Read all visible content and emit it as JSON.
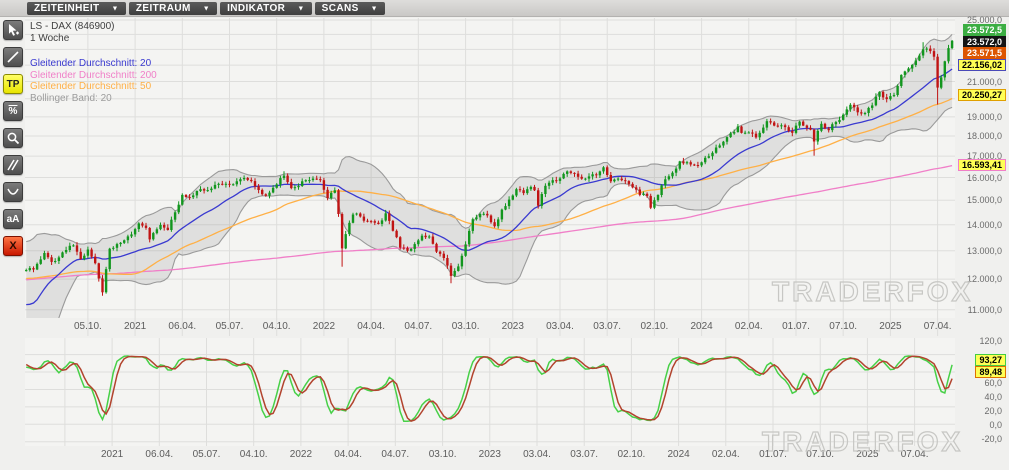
{
  "menu_bar": {
    "arrow": "▼",
    "items": [
      {
        "name": "menu-zeiteinheit",
        "label": "ZEITEINHEIT"
      },
      {
        "name": "menu-zeitraum",
        "label": "ZEITRAUM"
      },
      {
        "name": "menu-indikator",
        "label": "INDIKATOR"
      },
      {
        "name": "menu-scans",
        "label": "SCANS"
      }
    ]
  },
  "toolbar": {
    "items": [
      {
        "name": "pointer-tool",
        "icon": "cursor-plus-icon",
        "kind": "svg",
        "glyph": "cursor"
      },
      {
        "name": "trendline-tool",
        "icon": "trendline-icon",
        "kind": "svg",
        "glyph": "line"
      },
      {
        "name": "tp-tool",
        "icon": "tp-label-icon",
        "kind": "text",
        "label": "TP",
        "variant": "yellow"
      },
      {
        "name": "percent-tool",
        "icon": "percent-icon",
        "kind": "text",
        "label": "%",
        "variant": "pct"
      },
      {
        "name": "zoom-tool",
        "icon": "magnifier-icon",
        "kind": "svg",
        "glyph": "magnifier"
      },
      {
        "name": "parallel-lines-tool",
        "icon": "parallel-lines-icon",
        "kind": "svg",
        "glyph": "parallel"
      },
      {
        "name": "arc-tool",
        "icon": "arc-curve-icon",
        "kind": "svg",
        "glyph": "curve"
      },
      {
        "name": "text-tool",
        "icon": "text-aA-icon",
        "kind": "text",
        "label": "aA"
      },
      {
        "name": "delete-tool",
        "icon": "delete-x-icon",
        "kind": "text",
        "label": "X",
        "variant": "red"
      }
    ]
  },
  "legend": {
    "instrument": "LS - DAX (846900)",
    "timeframe": "1 Woche",
    "entries": [
      {
        "label": "Gleitender Durchschnitt: 20",
        "color": "#3a3ad0"
      },
      {
        "label": "Gleitender Durchschnitt: 200",
        "color": "#f07fc8"
      },
      {
        "label": "Gleitender Durchschnitt: 50",
        "color": "#ffb046"
      },
      {
        "label": "Bollinger Band: 20",
        "color": "#9c9c9c"
      }
    ]
  },
  "watermark": "TRADERFOX",
  "main_chart": {
    "y_axis_labels": [
      {
        "label": "25.000,0",
        "value": 25000
      },
      {
        "label": "21.000,0",
        "value": 21000
      },
      {
        "label": "19.000,0",
        "value": 19000
      },
      {
        "label": "18.000,0",
        "value": 18000
      },
      {
        "label": "17.000,0",
        "value": 17000
      },
      {
        "label": "16.000,0",
        "value": 16000
      },
      {
        "label": "15.000,0",
        "value": 15000
      },
      {
        "label": "14.000,0",
        "value": 14000
      },
      {
        "label": "13.000,0",
        "value": 13000
      },
      {
        "label": "12.000,0",
        "value": 12000
      },
      {
        "label": "11.000,0",
        "value": 11000
      }
    ],
    "x_ticks": [
      {
        "week": 17,
        "label": "05.10."
      },
      {
        "week": 30,
        "label": "2021"
      },
      {
        "week": 43,
        "label": "06.04."
      },
      {
        "week": 56,
        "label": "05.07."
      },
      {
        "week": 69,
        "label": "04.10."
      },
      {
        "week": 82,
        "label": "2022"
      },
      {
        "week": 95,
        "label": "04.04."
      },
      {
        "week": 108,
        "label": "04.07."
      },
      {
        "week": 121,
        "label": "03.10."
      },
      {
        "week": 134,
        "label": "2023"
      },
      {
        "week": 147,
        "label": "03.04."
      },
      {
        "week": 160,
        "label": "03.07."
      },
      {
        "week": 173,
        "label": "02.10."
      },
      {
        "week": 186,
        "label": "2024"
      },
      {
        "week": 199,
        "label": "02.04."
      },
      {
        "week": 212,
        "label": "01.07."
      },
      {
        "week": 225,
        "label": "07.10."
      },
      {
        "week": 238,
        "label": "2025"
      },
      {
        "week": 251,
        "label": "07.04."
      }
    ],
    "badges": [
      {
        "name": "badge-ask",
        "label": "23.572,5",
        "value": 23572.5,
        "bg": "#3cae43",
        "fg": "#ffffff",
        "border": "#3cae43",
        "stack": -1
      },
      {
        "name": "badge-last",
        "label": "23.572,0",
        "value": 23572.0,
        "bg": "#141414",
        "fg": "#ffffff",
        "border": "#141414",
        "stack": 0
      },
      {
        "name": "badge-bid",
        "label": "23.571,5",
        "value": 23571.5,
        "bg": "#dd5500",
        "fg": "#ffffff",
        "border": "#dd5500",
        "stack": 1
      },
      {
        "name": "badge-ma20",
        "label": "22.156,02",
        "value": 22156.02,
        "bg": "#ffff55",
        "fg": "#000000",
        "border": "#4a4ab8"
      },
      {
        "name": "badge-ma50",
        "label": "20.250,27",
        "value": 20250.27,
        "bg": "#ffff55",
        "fg": "#000000",
        "border": "#e0a000"
      },
      {
        "name": "badge-ma200",
        "label": "16.593,41",
        "value": 16593.41,
        "bg": "#ffff55",
        "fg": "#000000",
        "border": "#f07fc8"
      }
    ]
  },
  "lower_panel": {
    "indicator": "Stochastik",
    "y_axis_labels": [
      {
        "label": "120,0",
        "value": 120
      },
      {
        "label": "60,0",
        "value": 60
      },
      {
        "label": "40,0",
        "value": 40
      },
      {
        "label": "20,0",
        "value": 20
      },
      {
        "label": "0,0",
        "value": 0
      },
      {
        "label": "-20,0",
        "value": -20
      }
    ],
    "badges": [
      {
        "name": "badge-stoch-fast",
        "label": "93,27",
        "value": 93.27,
        "bg": "#ffff55",
        "fg": "#000000",
        "border": "#44cc44"
      },
      {
        "name": "badge-stoch-slow",
        "label": "89,48",
        "value": 89.48,
        "bg": "#ffff55",
        "fg": "#000000",
        "border": "#dd7000"
      }
    ]
  },
  "chart_data": {
    "type": "candlestick",
    "title": "LS - DAX (846900)",
    "timeframe": "1 Woche",
    "scale": "logarithmic",
    "y_range": [
      10740,
      25140
    ],
    "indicators": [
      "MA20",
      "MA50",
      "MA200",
      "Bollinger Band 20 (2 sigma)",
      "Stochastik (fast 93,27 / slow 89,48)"
    ],
    "colors": {
      "up": "#12961e",
      "down": "#c01414",
      "ma20": "#3a3ad0",
      "ma50": "#ffb046",
      "ma200": "#f07fc8",
      "boll": "#9a9a9a",
      "boll_fill": "rgba(120,120,120,0.16)",
      "stoch_fast": "#47d047",
      "stoch_slow": "#b2442e",
      "grid": "#dededc",
      "plot_bg": "#f4f4f2"
    },
    "close_anchors": [
      [
        0,
        12310
      ],
      [
        2,
        12330
      ],
      [
        5,
        12920
      ],
      [
        7,
        12600
      ],
      [
        9,
        12760
      ],
      [
        11,
        13030
      ],
      [
        13,
        13200
      ],
      [
        15,
        12700
      ],
      [
        17,
        13050
      ],
      [
        19,
        12550
      ],
      [
        21,
        11560
      ],
      [
        23,
        13080
      ],
      [
        26,
        13300
      ],
      [
        29,
        13620
      ],
      [
        31,
        14050
      ],
      [
        33,
        13870
      ],
      [
        34,
        13430
      ],
      [
        37,
        13990
      ],
      [
        39,
        13790
      ],
      [
        41,
        14500
      ],
      [
        43,
        15230
      ],
      [
        45,
        15130
      ],
      [
        47,
        15400
      ],
      [
        50,
        15440
      ],
      [
        52,
        15670
      ],
      [
        54,
        15690
      ],
      [
        56,
        15690
      ],
      [
        58,
        15830
      ],
      [
        60,
        15980
      ],
      [
        62,
        15840
      ],
      [
        63,
        15610
      ],
      [
        65,
        15260
      ],
      [
        66,
        15200
      ],
      [
        68,
        15540
      ],
      [
        69,
        15690
      ],
      [
        71,
        16090
      ],
      [
        73,
        15530
      ],
      [
        75,
        15620
      ],
      [
        77,
        15880
      ],
      [
        79,
        15950
      ],
      [
        81,
        15880
      ],
      [
        83,
        15100
      ],
      [
        84,
        15320
      ],
      [
        85,
        15430
      ],
      [
        86,
        14430
      ],
      [
        87,
        13090
      ],
      [
        88,
        13630
      ],
      [
        90,
        14410
      ],
      [
        91,
        14450
      ],
      [
        93,
        14160
      ],
      [
        95,
        14140
      ],
      [
        97,
        14030
      ],
      [
        99,
        14460
      ],
      [
        101,
        13760
      ],
      [
        103,
        13120
      ],
      [
        105,
        13000
      ],
      [
        107,
        13250
      ],
      [
        109,
        13570
      ],
      [
        111,
        13540
      ],
      [
        113,
        12970
      ],
      [
        115,
        12740
      ],
      [
        117,
        12110
      ],
      [
        118,
        12280
      ],
      [
        119,
        12440
      ],
      [
        121,
        13240
      ],
      [
        123,
        14220
      ],
      [
        125,
        14430
      ],
      [
        127,
        14370
      ],
      [
        129,
        13940
      ],
      [
        131,
        14610
      ],
      [
        133,
        15030
      ],
      [
        135,
        15480
      ],
      [
        137,
        15310
      ],
      [
        139,
        15580
      ],
      [
        140,
        15430
      ],
      [
        141,
        14770
      ],
      [
        143,
        15630
      ],
      [
        145,
        15880
      ],
      [
        147,
        15960
      ],
      [
        149,
        16280
      ],
      [
        151,
        16180
      ],
      [
        153,
        15950
      ],
      [
        155,
        16050
      ],
      [
        157,
        16100
      ],
      [
        159,
        16470
      ],
      [
        161,
        15830
      ],
      [
        163,
        15950
      ],
      [
        165,
        15840
      ],
      [
        167,
        15560
      ],
      [
        169,
        15230
      ],
      [
        171,
        15190
      ],
      [
        172,
        14690
      ],
      [
        174,
        15230
      ],
      [
        176,
        15920
      ],
      [
        178,
        16220
      ],
      [
        180,
        16750
      ],
      [
        182,
        16710
      ],
      [
        183,
        16600
      ],
      [
        185,
        16560
      ],
      [
        187,
        16920
      ],
      [
        189,
        17160
      ],
      [
        190,
        17420
      ],
      [
        192,
        17710
      ],
      [
        193,
        17940
      ],
      [
        195,
        18200
      ],
      [
        196,
        18490
      ],
      [
        197,
        18160
      ],
      [
        199,
        18175
      ],
      [
        201,
        17930
      ],
      [
        202,
        18160
      ],
      [
        204,
        18770
      ],
      [
        205,
        18700
      ],
      [
        207,
        18500
      ],
      [
        208,
        18550
      ],
      [
        210,
        18260
      ],
      [
        211,
        18160
      ],
      [
        213,
        18750
      ],
      [
        215,
        18420
      ],
      [
        216,
        18320
      ],
      [
        217,
        17720
      ],
      [
        219,
        18630
      ],
      [
        221,
        18300
      ],
      [
        223,
        18720
      ],
      [
        225,
        19120
      ],
      [
        227,
        19660
      ],
      [
        229,
        19250
      ],
      [
        231,
        19210
      ],
      [
        233,
        19630
      ],
      [
        235,
        20400
      ],
      [
        237,
        19980
      ],
      [
        239,
        20210
      ],
      [
        241,
        21400
      ],
      [
        243,
        21790
      ],
      [
        245,
        22290
      ],
      [
        247,
        23010
      ],
      [
        249,
        22890
      ],
      [
        250,
        22530
      ],
      [
        251,
        20640
      ],
      [
        252,
        21250
      ],
      [
        253,
        22240
      ],
      [
        254,
        23090
      ],
      [
        255,
        23572
      ]
    ],
    "prehistory_anchors": [
      [
        -210,
        9900
      ],
      [
        -200,
        10400
      ],
      [
        -190,
        10650
      ],
      [
        -180,
        11500
      ],
      [
        -170,
        11900
      ],
      [
        -160,
        12500
      ],
      [
        -150,
        12150
      ],
      [
        -140,
        12950
      ],
      [
        -130,
        13050
      ],
      [
        -120,
        12450
      ],
      [
        -110,
        12950
      ],
      [
        -100,
        12350
      ],
      [
        -90,
        12200
      ],
      [
        -80,
        11550
      ],
      [
        -70,
        10600
      ],
      [
        -60,
        11350
      ],
      [
        -50,
        12050
      ],
      [
        -45,
        11950
      ],
      [
        -40,
        11700
      ],
      [
        -35,
        12400
      ],
      [
        -30,
        13250
      ],
      [
        -25,
        13400
      ],
      [
        -21,
        13580
      ],
      [
        -18,
        11540
      ],
      [
        -16,
        9160
      ],
      [
        -14,
        9630
      ],
      [
        -12,
        10640
      ],
      [
        -10,
        10470
      ],
      [
        -8,
        11080
      ],
      [
        -6,
        11590
      ],
      [
        -4,
        12850
      ],
      [
        -2,
        12340
      ]
    ],
    "wick_lows": {
      "21": 11450,
      "87": 12430,
      "117": 11860,
      "217": 17020,
      "251": 19670
    },
    "wick_highs": {
      "71": 16290,
      "247": 23475,
      "255": 23620
    }
  }
}
